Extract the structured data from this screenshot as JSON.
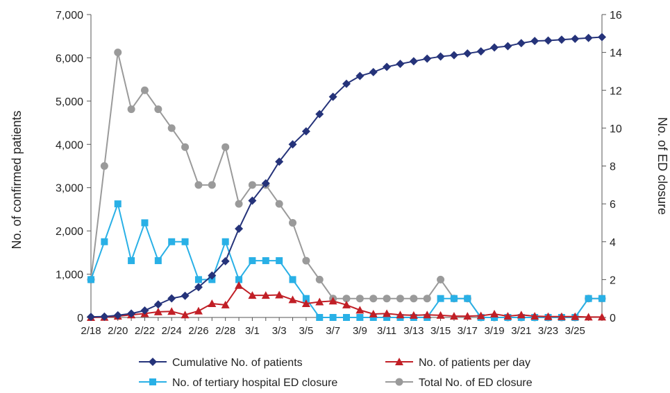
{
  "chart_data": {
    "type": "line",
    "x_labels": [
      "2/18",
      "2/19",
      "2/20",
      "2/21",
      "2/22",
      "2/23",
      "2/24",
      "2/25",
      "2/26",
      "2/27",
      "2/28",
      "2/29",
      "3/1",
      "3/2",
      "3/3",
      "3/4",
      "3/5",
      "3/6",
      "3/7",
      "3/8",
      "3/9",
      "3/10",
      "3/11",
      "3/12",
      "3/13",
      "3/14",
      "3/15",
      "3/16",
      "3/17",
      "3/18",
      "3/19",
      "3/20",
      "3/21",
      "3/22",
      "3/23",
      "3/24",
      "3/25",
      "3/26",
      "3/27"
    ],
    "x_tick_labels": [
      "2/18",
      "2/20",
      "2/22",
      "2/24",
      "2/26",
      "2/28",
      "3/1",
      "3/3",
      "3/5",
      "3/7",
      "3/9",
      "3/11",
      "3/13",
      "3/15",
      "3/17",
      "3/19",
      "3/21",
      "3/23",
      "3/25"
    ],
    "left_axis": {
      "label": "No. of confirmed patients",
      "range": [
        0,
        7000
      ],
      "ticks": [
        "0",
        "1,000",
        "2,000",
        "3,000",
        "4,000",
        "5,000",
        "6,000",
        "7,000"
      ]
    },
    "right_axis": {
      "label": "No. of ED closure",
      "range": [
        0,
        16
      ],
      "ticks": [
        "0",
        "2",
        "4",
        "6",
        "8",
        "10",
        "12",
        "14",
        "16"
      ]
    },
    "series": [
      {
        "name": "Cumulative No. of patients",
        "axis": "left",
        "color": "#25337a",
        "marker": "diamond",
        "values": [
          15,
          20,
          50,
          90,
          160,
          300,
          440,
          500,
          700,
          970,
          1300,
          2050,
          2700,
          3100,
          3600,
          4000,
          4300,
          4700,
          5100,
          5400,
          5580,
          5670,
          5790,
          5860,
          5920,
          5980,
          6030,
          6060,
          6100,
          6150,
          6240,
          6270,
          6340,
          6390,
          6400,
          6420,
          6440,
          6460,
          6480
        ]
      },
      {
        "name": "No. of patients per day",
        "axis": "left",
        "color": "#c11f26",
        "marker": "triangle",
        "values": [
          0,
          5,
          30,
          60,
          90,
          130,
          140,
          60,
          150,
          320,
          290,
          740,
          510,
          510,
          520,
          410,
          320,
          360,
          380,
          290,
          170,
          80,
          90,
          60,
          50,
          60,
          50,
          30,
          30,
          40,
          80,
          30,
          60,
          30,
          20,
          20,
          20,
          10,
          10
        ]
      },
      {
        "name": "No. of tertiary hospital ED closure",
        "axis": "right",
        "color": "#29b0e6",
        "marker": "square",
        "values": [
          2,
          4,
          6,
          3,
          5,
          3,
          4,
          4,
          2,
          2,
          4,
          2,
          3,
          3,
          3,
          2,
          1,
          0,
          0,
          0,
          0,
          0,
          0,
          0,
          0,
          0,
          1,
          1,
          1,
          0,
          0,
          0,
          0,
          0,
          0,
          0,
          0,
          1,
          1
        ]
      },
      {
        "name": "Total No. of ED closure",
        "axis": "right",
        "color": "#9a9a9a",
        "marker": "circle",
        "values": [
          2,
          8,
          14,
          11,
          12,
          11,
          10,
          9,
          7,
          7,
          9,
          6,
          7,
          7,
          6,
          5,
          3,
          2,
          1,
          1,
          1,
          1,
          1,
          1,
          1,
          1,
          2,
          1,
          1,
          0,
          0,
          0,
          0,
          0,
          0,
          0,
          0,
          1,
          1
        ]
      }
    ],
    "legend_position": "bottom",
    "grid": false
  }
}
